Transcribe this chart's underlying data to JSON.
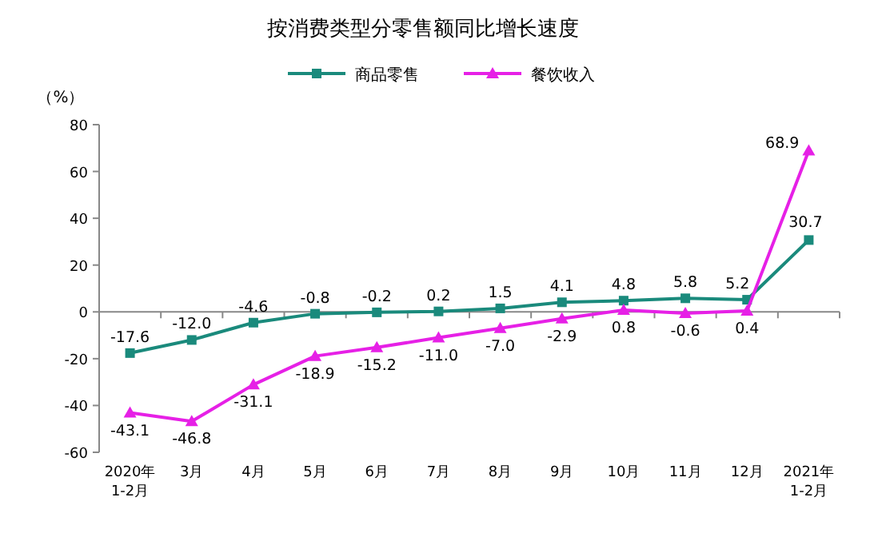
{
  "chart_data": {
    "type": "line",
    "title": "按消费类型分零售额同比增长速度",
    "ylabel": "（%）",
    "categories": [
      "2020年\n1-2月",
      "3月",
      "4月",
      "5月",
      "6月",
      "7月",
      "8月",
      "9月",
      "10月",
      "11月",
      "12月",
      "2021年\n1-2月"
    ],
    "series": [
      {
        "name": "商品零售",
        "color": "#1a8a7c",
        "marker": "square",
        "values": [
          -17.6,
          -12.0,
          -4.6,
          -0.8,
          -0.2,
          0.2,
          1.5,
          4.1,
          4.8,
          5.8,
          5.2,
          30.7
        ],
        "value_labels": [
          "-17.6",
          "-12.0",
          "-4.6",
          "-0.8",
          "-0.2",
          "0.2",
          "1.5",
          "4.1",
          "4.8",
          "5.8",
          "5.2",
          "30.7"
        ]
      },
      {
        "name": "餐饮收入",
        "color": "#e620e6",
        "marker": "triangle",
        "values": [
          -43.1,
          -46.8,
          -31.1,
          -18.9,
          -15.2,
          -11.0,
          -7.0,
          -2.9,
          0.8,
          -0.6,
          0.4,
          68.9
        ],
        "value_labels": [
          "-43.1",
          "-46.8",
          "-31.1",
          "-18.9",
          "-15.2",
          "-11.0",
          "-7.0",
          "-2.9",
          "0.8",
          "-0.6",
          "0.4",
          "68.9"
        ]
      }
    ],
    "ylim": [
      -60,
      80
    ],
    "yticks": [
      -60,
      -40,
      -20,
      0,
      20,
      40,
      60,
      80
    ],
    "legend": "top"
  }
}
